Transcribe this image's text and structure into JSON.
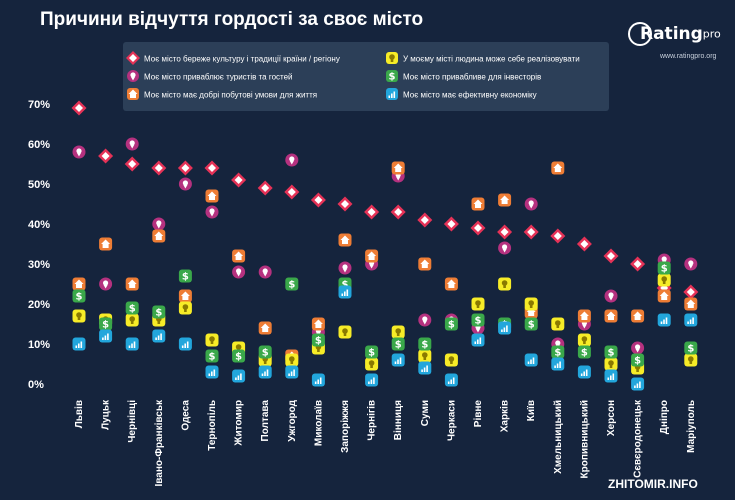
{
  "title": "Причини відчуття гордості за своє місто",
  "logo": {
    "brand": "Rating",
    "sub": "pro",
    "url": "www.ratingpro.org"
  },
  "watermark": "ZHITOMIR.INFO",
  "colors": {
    "background": "#15243d",
    "legend_bg": "#2c3f58",
    "text": "#ffffff"
  },
  "chart_data": {
    "type": "scatter",
    "title": "Причини відчуття гордості за своє місто",
    "yticks": [
      "0%",
      "10%",
      "20%",
      "30%",
      "40%",
      "50%",
      "60%",
      "70%"
    ],
    "ylim": [
      0,
      72
    ],
    "categories": [
      "Львів",
      "Луцьк",
      "Чернівці",
      "Івано-Франківськ",
      "Одеса",
      "Тернопіль",
      "Житомир",
      "Полтава",
      "Ужгород",
      "Миколаїв",
      "Запоріжжя",
      "Чернігів",
      "Вінниця",
      "Суми",
      "Черкаси",
      "Рівне",
      "Харків",
      "Київ",
      "Хмельницький",
      "Кропивницький",
      "Херсон",
      "Сєвєродонецьк",
      "Дніпро",
      "Маріуполь"
    ],
    "series": [
      {
        "name": "Моє місто береже культуру і традиції країни / регіону",
        "color": "#e53257",
        "icon": "diamond",
        "values": [
          69,
          57,
          55,
          54,
          54,
          54,
          51,
          49,
          48,
          46,
          45,
          43,
          43,
          41,
          40,
          39,
          38,
          38,
          37,
          35,
          32,
          30,
          24,
          23
        ]
      },
      {
        "name": "Моє місто приваблює туристів та гостей",
        "color": "#b5317f",
        "icon": "pin",
        "values": [
          58,
          25,
          60,
          40,
          50,
          43,
          28,
          28,
          56,
          13,
          29,
          30,
          52,
          16,
          16,
          14,
          34,
          45,
          10,
          15,
          22,
          9,
          31,
          30
        ]
      },
      {
        "name": "Моє місто має добрі побутові умови для життя",
        "color": "#ee7d35",
        "icon": "house",
        "values": [
          25,
          35,
          25,
          37,
          22,
          47,
          32,
          14,
          7,
          15,
          36,
          32,
          54,
          30,
          25,
          45,
          46,
          18,
          54,
          17,
          17,
          17,
          22,
          20
        ]
      },
      {
        "name": "У моєму місті людина може себе реалізовувати",
        "color": "#f7ec27",
        "icon": "bulb",
        "values": [
          17,
          16,
          16,
          16,
          19,
          11,
          9,
          6,
          6,
          9,
          13,
          5,
          13,
          7,
          6,
          20,
          25,
          20,
          15,
          11,
          5,
          4,
          26,
          6
        ]
      },
      {
        "name": "Моє місто привабливе для інвесторів",
        "color": "#3aa84a",
        "icon": "dollar",
        "values": [
          22,
          15,
          19,
          18,
          27,
          7,
          7,
          8,
          25,
          11,
          25,
          8,
          10,
          10,
          15,
          16,
          15,
          15,
          8,
          8,
          8,
          6,
          29,
          9
        ]
      },
      {
        "name": "Моє місто має ефективну економіку",
        "color": "#22a6dc",
        "icon": "chart",
        "values": [
          10,
          12,
          10,
          12,
          10,
          3,
          2,
          3,
          3,
          1,
          23,
          1,
          6,
          4,
          1,
          11,
          14,
          6,
          5,
          3,
          2,
          0,
          16,
          16
        ]
      }
    ]
  }
}
